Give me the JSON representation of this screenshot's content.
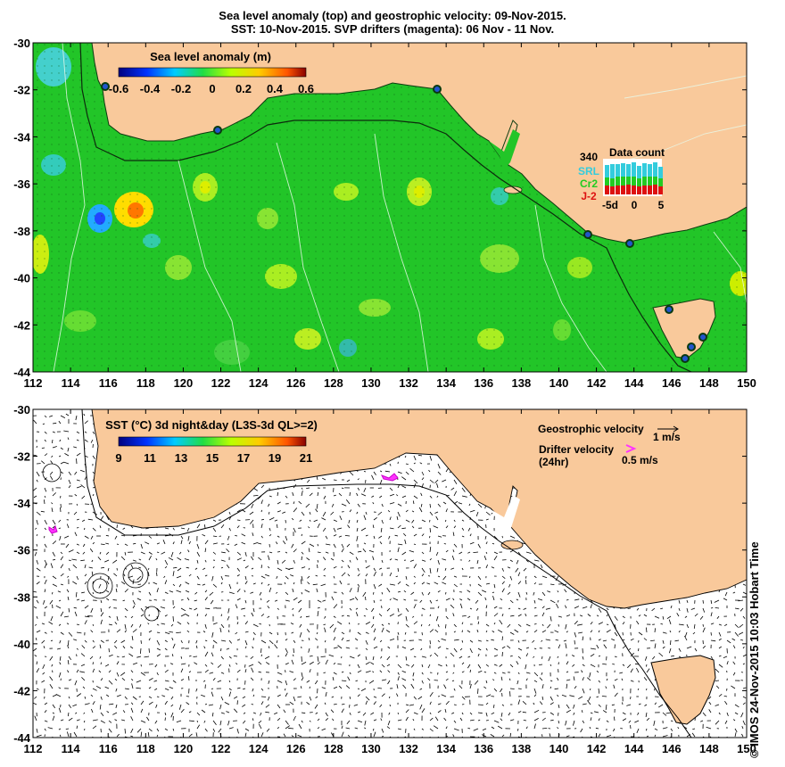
{
  "title_line1": "Sea level anomaly (top) and geostrophic velocity: 09-Nov-2015.",
  "title_line2": "SST: 10-Nov-2015. SVP drifters (magenta): 06 Nov - 11 Nov.",
  "credit": "© IMOS 24-Nov-2015 10:03 Hobart Time",
  "x_ticks": [
    "112",
    "114",
    "116",
    "118",
    "120",
    "122",
    "124",
    "126",
    "128",
    "130",
    "132",
    "134",
    "136",
    "138",
    "140",
    "142",
    "144",
    "146",
    "148",
    "150"
  ],
  "y_ticks": [
    "-30",
    "-32",
    "-34",
    "-36",
    "-38",
    "-40",
    "-42",
    "-44"
  ],
  "sla_legend": {
    "title": "Sea level anomaly (m)",
    "labels": [
      "-0.6",
      "-0.4",
      "-0.2",
      "0",
      "0.2",
      "0.4",
      "0.6"
    ]
  },
  "sst_legend": {
    "title": "SST (°C) 3d night&day (L3S-3d QL>=2)",
    "labels": [
      "9",
      "11",
      "13",
      "15",
      "17",
      "19",
      "21"
    ]
  },
  "data_count": {
    "title": "Data count",
    "max": "340",
    "series": [
      "SRL",
      "Cr2",
      "J-2"
    ],
    "ticks": [
      "-5d",
      "0",
      "5"
    ]
  },
  "velocity_legend": {
    "geo_label": "Geostrophic velocity",
    "geo_scale": "1 m/s",
    "drifter_label": "Drifter velocity",
    "drifter_sub": "(24hr)",
    "drifter_scale": "0.5 m/s"
  },
  "colors": {
    "land": "#f9c99b",
    "ocean_base": "#22c528",
    "ocean_light": "#33d436",
    "drifter": "#ff33ff",
    "srl": "#33ccdd",
    "cr2": "#22cc22",
    "j2": "#dd1111"
  },
  "chart_data": {
    "type": "heatmap",
    "title": "Sea level anomaly (top) and geostrophic velocity: 09-Nov-2015.",
    "xlim": [
      112,
      150
    ],
    "ylim": [
      -44,
      -30
    ],
    "sla_range_m": [
      -0.6,
      0.6
    ],
    "sst_range_c": [
      9,
      21
    ]
  }
}
